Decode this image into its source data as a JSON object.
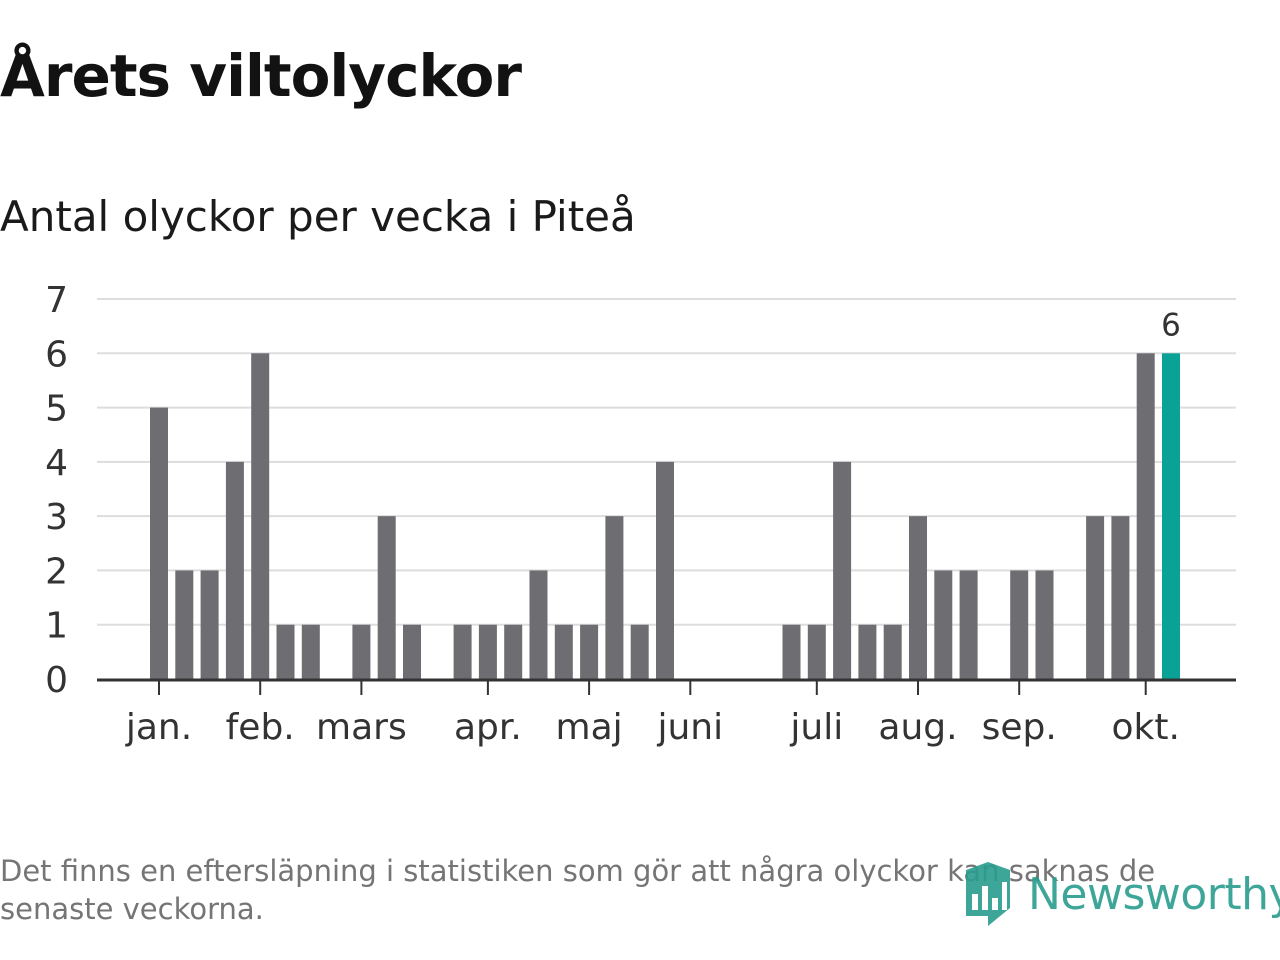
{
  "header": {
    "title": "Årets viltolyckor",
    "subtitle": "Antal olyckor per vecka i Piteå"
  },
  "footer": {
    "note": "Det finns en eftersläpning i statistiken som gör att några olyckor kan saknas de senaste veckorna.",
    "brand": "Newsworthy"
  },
  "colors": {
    "bar": "#6e6d72",
    "highlight": "#0aa197",
    "grid": "#dddddd",
    "axis": "#333333",
    "brand": "#2a9d8f"
  },
  "chart_data": {
    "type": "bar",
    "title": "Antal olyckor per vecka i Piteå",
    "xlabel": "",
    "ylabel": "",
    "ylim": [
      0,
      7
    ],
    "yticks": [
      "0",
      "1",
      "2",
      "3",
      "4",
      "5",
      "6",
      "7"
    ],
    "grid": true,
    "weeks": [
      1,
      2,
      3,
      4,
      5,
      6,
      7,
      8,
      9,
      10,
      11,
      12,
      13,
      14,
      15,
      16,
      17,
      18,
      19,
      20,
      21,
      22,
      23,
      24,
      25,
      26,
      27,
      28,
      29,
      30,
      31,
      32,
      33,
      34,
      35,
      36,
      37,
      38,
      39,
      40,
      41
    ],
    "values": [
      5,
      2,
      2,
      4,
      6,
      1,
      1,
      0,
      1,
      3,
      1,
      0,
      1,
      1,
      1,
      2,
      1,
      1,
      3,
      1,
      4,
      0,
      0,
      0,
      0,
      1,
      1,
      4,
      1,
      1,
      3,
      2,
      2,
      0,
      2,
      2,
      0,
      3,
      3,
      6,
      6
    ],
    "highlight_index": 40,
    "highlight_label": "6",
    "month_labels": [
      {
        "label": "jan.",
        "week": 1
      },
      {
        "label": "feb.",
        "week": 5
      },
      {
        "label": "mars",
        "week": 9
      },
      {
        "label": "apr.",
        "week": 14
      },
      {
        "label": "maj",
        "week": 18
      },
      {
        "label": "juni",
        "week": 22
      },
      {
        "label": "juli",
        "week": 27
      },
      {
        "label": "aug.",
        "week": 31
      },
      {
        "label": "sep.",
        "week": 35
      },
      {
        "label": "okt.",
        "week": 40
      }
    ]
  }
}
